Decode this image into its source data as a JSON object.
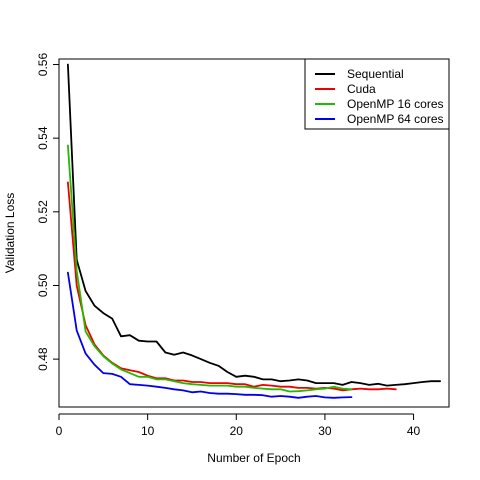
{
  "chart_data": {
    "type": "line",
    "title": "",
    "xlabel": "Number of Epoch",
    "ylabel": "Validation Loss",
    "xlim": [
      0,
      44
    ],
    "ylim": [
      0.467,
      0.5615
    ],
    "x_ticks": [
      0,
      10,
      20,
      30,
      40
    ],
    "x_tick_labels": [
      "0",
      "10",
      "20",
      "30",
      "40"
    ],
    "y_ticks": [
      0.48,
      0.5,
      0.52,
      0.54,
      0.56
    ],
    "y_tick_labels": [
      "0.48",
      "0.50",
      "0.52",
      "0.54",
      "0.56"
    ],
    "grid": false,
    "legend_position": "top-right",
    "series": [
      {
        "name": "Sequential",
        "color": "#000000",
        "x": [
          1,
          2,
          3,
          4,
          5,
          6,
          7,
          8,
          9,
          10,
          11,
          12,
          13,
          14,
          15,
          16,
          17,
          18,
          19,
          20,
          21,
          22,
          23,
          24,
          25,
          26,
          27,
          28,
          29,
          30,
          31,
          32,
          33,
          34,
          35,
          36,
          37,
          38,
          39,
          40,
          41,
          42,
          43
        ],
        "values": [
          0.56,
          0.507,
          0.4985,
          0.4945,
          0.4925,
          0.491,
          0.4862,
          0.4865,
          0.485,
          0.4848,
          0.4848,
          0.4818,
          0.4812,
          0.4818,
          0.481,
          0.48,
          0.479,
          0.4782,
          0.4765,
          0.4752,
          0.4755,
          0.4752,
          0.4745,
          0.4745,
          0.474,
          0.4742,
          0.4745,
          0.4742,
          0.4735,
          0.4735,
          0.4735,
          0.473,
          0.4738,
          0.4735,
          0.473,
          0.4733,
          0.4728,
          0.473,
          0.4732,
          0.4735,
          0.4738,
          0.474,
          0.474
        ]
      },
      {
        "name": "Cuda",
        "color": "#ee0000",
        "x": [
          1,
          2,
          3,
          4,
          5,
          6,
          7,
          8,
          9,
          10,
          11,
          12,
          13,
          14,
          15,
          16,
          17,
          18,
          19,
          20,
          21,
          22,
          23,
          24,
          25,
          26,
          27,
          28,
          29,
          30,
          31,
          32,
          33,
          34,
          35,
          36,
          37,
          38
        ],
        "values": [
          0.528,
          0.5,
          0.4892,
          0.484,
          0.481,
          0.479,
          0.4775,
          0.477,
          0.4765,
          0.4755,
          0.4748,
          0.4748,
          0.4742,
          0.4742,
          0.4738,
          0.4738,
          0.4735,
          0.4735,
          0.4735,
          0.4732,
          0.4732,
          0.4725,
          0.473,
          0.4728,
          0.4725,
          0.4725,
          0.4722,
          0.4722,
          0.472,
          0.4722,
          0.472,
          0.4715,
          0.4718,
          0.472,
          0.4718,
          0.4718,
          0.472,
          0.4718
        ]
      },
      {
        "name": "OpenMP 16 cores",
        "color": "#22bb00",
        "x": [
          1,
          2,
          3,
          4,
          5,
          6,
          7,
          8,
          9,
          10,
          11,
          12,
          13,
          14,
          15,
          16,
          17,
          18,
          19,
          20,
          21,
          22,
          23,
          24,
          25,
          26,
          27,
          28,
          29,
          30,
          31,
          32,
          33
        ],
        "values": [
          0.538,
          0.504,
          0.4875,
          0.4835,
          0.4808,
          0.4788,
          0.4772,
          0.4762,
          0.4752,
          0.4752,
          0.4745,
          0.4745,
          0.474,
          0.4735,
          0.4732,
          0.473,
          0.4728,
          0.4728,
          0.4728,
          0.4725,
          0.4725,
          0.4722,
          0.472,
          0.4718,
          0.4718,
          0.4712,
          0.4713,
          0.4715,
          0.4718,
          0.472,
          0.4725,
          0.472,
          0.4718
        ]
      },
      {
        "name": "OpenMP 64 cores",
        "color": "#0000ee",
        "x": [
          1,
          2,
          3,
          4,
          5,
          6,
          7,
          8,
          9,
          10,
          11,
          12,
          13,
          14,
          15,
          16,
          17,
          18,
          19,
          20,
          21,
          22,
          23,
          24,
          25,
          26,
          27,
          28,
          29,
          30,
          31,
          32,
          33
        ],
        "values": [
          0.5035,
          0.4878,
          0.4815,
          0.4785,
          0.4762,
          0.476,
          0.4752,
          0.4732,
          0.473,
          0.4728,
          0.4725,
          0.4722,
          0.4718,
          0.4715,
          0.471,
          0.4712,
          0.4708,
          0.4706,
          0.4706,
          0.4705,
          0.4703,
          0.4703,
          0.4702,
          0.4698,
          0.47,
          0.4698,
          0.4695,
          0.4698,
          0.47,
          0.4696,
          0.4695,
          0.4696,
          0.4697
        ]
      }
    ]
  }
}
